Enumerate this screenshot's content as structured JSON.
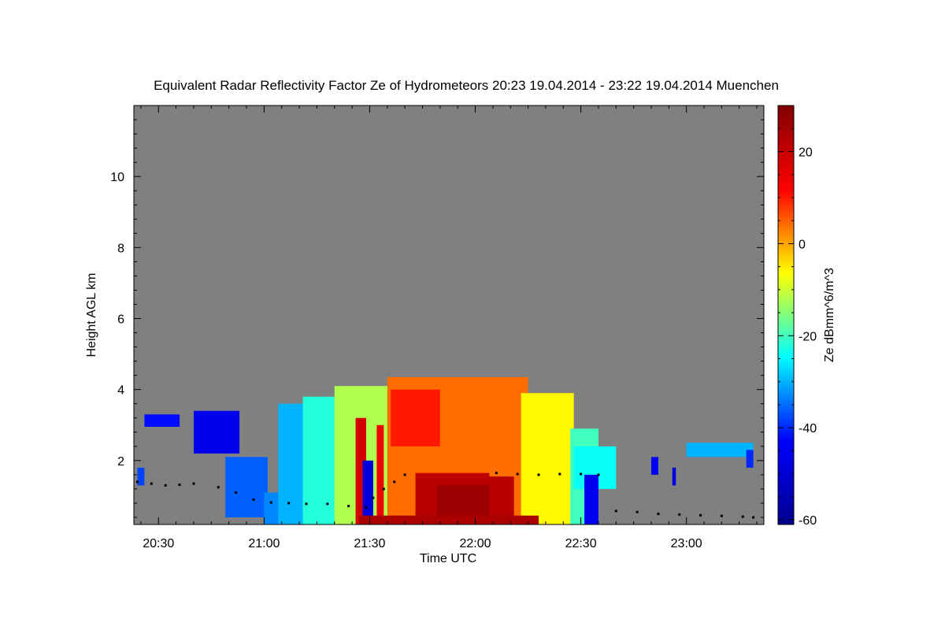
{
  "chart_data": {
    "type": "heatmap",
    "title": "Equivalent Radar Reflectivity Factor Ze of Hydrometeors   20:23 19.04.2014 - 23:22 19.04.2014 Muenchen",
    "xlabel": "Time UTC",
    "ylabel": "Height AGL km",
    "colorbar_label": "Ze dBmm^6/m^3",
    "x_tick_labels": [
      "20:30",
      "21:00",
      "21:30",
      "22:00",
      "22:30",
      "23:00"
    ],
    "x_tick_minutes": [
      30,
      60,
      90,
      120,
      150,
      180
    ],
    "xlim_minutes": [
      23,
      202
    ],
    "y_tick_labels": [
      "2",
      "4",
      "6",
      "8",
      "10"
    ],
    "y_ticks": [
      2,
      4,
      6,
      8,
      10
    ],
    "ylim": [
      0.2,
      12.0
    ],
    "colorbar_tick_labels": [
      "20",
      "0",
      "-20",
      "-40",
      "-60"
    ],
    "colorbar_ticks": [
      20,
      0,
      -20,
      -40,
      -60
    ],
    "colorbar_range": [
      -61,
      30
    ],
    "colormap": [
      "#00008f",
      "#0000ff",
      "#00ffff",
      "#ffff00",
      "#ff0000",
      "#800000"
    ],
    "background_color": "#808080",
    "cloud_base_color": "#000000",
    "echo_regions": [
      {
        "t0": 26,
        "t1": 36,
        "h0": 2.95,
        "h1": 3.3,
        "ze": -42
      },
      {
        "t0": 40,
        "t1": 53,
        "h0": 2.2,
        "h1": 3.4,
        "ze": -46
      },
      {
        "t0": 24,
        "t1": 26,
        "h0": 1.3,
        "h1": 1.8,
        "ze": -38
      },
      {
        "t0": 49,
        "t1": 61,
        "h0": 0.4,
        "h1": 2.1,
        "ze": -36
      },
      {
        "t0": 60,
        "t1": 65,
        "h0": 0.2,
        "h1": 1.1,
        "ze": -33
      },
      {
        "t0": 64,
        "t1": 72,
        "h0": 0.2,
        "h1": 3.6,
        "ze": -30
      },
      {
        "t0": 71,
        "t1": 82,
        "h0": 0.2,
        "h1": 3.8,
        "ze": -22
      },
      {
        "t0": 80,
        "t1": 96,
        "h0": 0.2,
        "h1": 4.1,
        "ze": -12
      },
      {
        "t0": 95,
        "t1": 135,
        "h0": 0.2,
        "h1": 4.35,
        "ze": 4
      },
      {
        "t0": 133,
        "t1": 148,
        "h0": 0.2,
        "h1": 3.9,
        "ze": -6
      },
      {
        "t0": 147,
        "t1": 155,
        "h0": 0.2,
        "h1": 2.9,
        "ze": -20
      },
      {
        "t0": 148,
        "t1": 160,
        "h0": 1.2,
        "h1": 2.4,
        "ze": -24
      },
      {
        "t0": 151,
        "t1": 155,
        "h0": 0.2,
        "h1": 1.6,
        "ze": -45
      },
      {
        "t0": 86,
        "t1": 89,
        "h0": 0.2,
        "h1": 3.2,
        "ze": 18
      },
      {
        "t0": 88,
        "t1": 91,
        "h0": 0.2,
        "h1": 2.0,
        "ze": -48
      },
      {
        "t0": 92,
        "t1": 94,
        "h0": 0.2,
        "h1": 3.0,
        "ze": 14
      },
      {
        "t0": 103,
        "t1": 131,
        "h0": 0.2,
        "h1": 1.55,
        "ze": 22
      },
      {
        "t0": 109,
        "t1": 124,
        "h0": 0.2,
        "h1": 1.3,
        "ze": 26
      },
      {
        "t0": 103,
        "t1": 124,
        "h0": 1.5,
        "h1": 1.65,
        "ze": 21
      },
      {
        "t0": 87,
        "t1": 138,
        "h0": 0.2,
        "h1": 0.45,
        "ze": 24
      },
      {
        "t0": 96,
        "t1": 110,
        "h0": 2.4,
        "h1": 4.0,
        "ze": 10
      },
      {
        "t0": 180,
        "t1": 199,
        "h0": 2.1,
        "h1": 2.5,
        "ze": -30
      },
      {
        "t0": 170,
        "t1": 172,
        "h0": 1.6,
        "h1": 2.1,
        "ze": -45
      },
      {
        "t0": 176,
        "t1": 177,
        "h0": 1.3,
        "h1": 1.8,
        "ze": -48
      },
      {
        "t0": 197,
        "t1": 199,
        "h0": 1.8,
        "h1": 2.3,
        "ze": -40
      }
    ],
    "cloud_base_points": [
      [
        24,
        1.4
      ],
      [
        28,
        1.35
      ],
      [
        32,
        1.3
      ],
      [
        36,
        1.32
      ],
      [
        40,
        1.35
      ],
      [
        47,
        1.25
      ],
      [
        52,
        1.1
      ],
      [
        57,
        0.9
      ],
      [
        62,
        0.82
      ],
      [
        67,
        0.8
      ],
      [
        72,
        0.78
      ],
      [
        78,
        0.78
      ],
      [
        84,
        0.72
      ],
      [
        89,
        0.68
      ],
      [
        91,
        0.95
      ],
      [
        94,
        1.2
      ],
      [
        97,
        1.4
      ],
      [
        100,
        1.6
      ],
      [
        126,
        1.65
      ],
      [
        132,
        1.62
      ],
      [
        138,
        1.6
      ],
      [
        144,
        1.62
      ],
      [
        150,
        1.62
      ],
      [
        155,
        1.6
      ],
      [
        160,
        0.58
      ],
      [
        166,
        0.55
      ],
      [
        172,
        0.5
      ],
      [
        178,
        0.48
      ],
      [
        184,
        0.46
      ],
      [
        190,
        0.44
      ],
      [
        196,
        0.42
      ],
      [
        199,
        0.4
      ]
    ]
  }
}
